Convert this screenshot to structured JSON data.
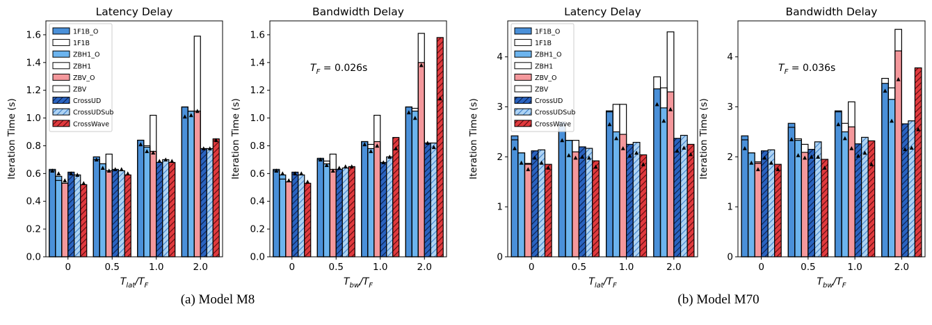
{
  "captions": [
    "(a) Model M8",
    "(b) Model M70"
  ],
  "legend": {
    "entries": [
      {
        "label": "1F1B_O",
        "fill": "#4a90d9",
        "hatch": false
      },
      {
        "label": "1F1B",
        "fill": "none",
        "hatch": false
      },
      {
        "label": "ZBH1_O",
        "fill": "#6cb4ee",
        "hatch": false
      },
      {
        "label": "ZBH1",
        "fill": "none",
        "hatch": false
      },
      {
        "label": "ZBV_O",
        "fill": "#f4989c",
        "hatch": false
      },
      {
        "label": "ZBV",
        "fill": "none",
        "hatch": false
      },
      {
        "label": "CrossUD",
        "fill": "#2a63c0",
        "hatch": true
      },
      {
        "label": "CrossUDSub",
        "fill": "#aed3f3",
        "hatch": true
      },
      {
        "label": "CrossWave",
        "fill": "#e03a3e",
        "hatch": true
      }
    ]
  },
  "chart_data": [
    {
      "type": "bar",
      "model": "M8",
      "title": "Latency Delay",
      "xlabel_main": "T",
      "xlabel_main_sub": "lat",
      "xlabel_den": "T",
      "xlabel_den_sub": "F",
      "ylabel": "Iteration Time (s)",
      "categories": [
        "0",
        "0.5",
        "1.0",
        "2.0"
      ],
      "ylim": [
        0,
        1.7
      ],
      "yticks": [
        "0.0",
        "0.2",
        "0.4",
        "0.6",
        "0.8",
        "1.0",
        "1.2",
        "1.4",
        "1.6"
      ],
      "ytick_values": [
        0,
        0.2,
        0.4,
        0.6,
        0.8,
        1.0,
        1.2,
        1.4,
        1.6
      ],
      "annotation": "",
      "series": [
        {
          "values": [
            0.63,
            0.72,
            0.84,
            1.08
          ],
          "markers": [
            0.62,
            0.7,
            0.81,
            1.01
          ]
        },
        {
          "values": [
            0.62,
            0.7,
            0.84,
            1.08
          ],
          "markers": []
        },
        {
          "values": [
            0.58,
            0.67,
            0.79,
            1.05
          ],
          "markers": [
            0.6,
            0.64,
            0.76,
            1.02
          ]
        },
        {
          "values": [
            0.55,
            0.67,
            0.8,
            1.05
          ],
          "markers": []
        },
        {
          "values": [
            0.53,
            0.62,
            0.76,
            1.05
          ],
          "markers": [
            0.55,
            0.62,
            0.75,
            1.05
          ]
        },
        {
          "values": [
            0.53,
            0.74,
            1.02,
            1.59
          ],
          "markers": []
        },
        {
          "values": [
            0.61,
            0.63,
            0.68,
            0.78
          ],
          "markers": [
            0.6,
            0.63,
            0.69,
            0.78
          ]
        },
        {
          "values": [
            0.59,
            0.62,
            0.7,
            0.78
          ],
          "markers": [
            0.59,
            0.63,
            0.7,
            0.78
          ]
        },
        {
          "values": [
            0.52,
            0.59,
            0.68,
            0.85
          ],
          "markers": [
            0.53,
            0.6,
            0.69,
            0.84
          ]
        }
      ]
    },
    {
      "type": "bar",
      "model": "M8",
      "title": "Bandwidth Delay",
      "xlabel_main": "T",
      "xlabel_main_sub": "bw",
      "xlabel_den": "T",
      "xlabel_den_sub": "F",
      "ylabel": "Iteration Time (s)",
      "categories": [
        "0",
        "0.5",
        "1.0",
        "2.0"
      ],
      "ylim": [
        0,
        1.7
      ],
      "yticks": [
        "0.0",
        "0.2",
        "0.4",
        "0.6",
        "0.8",
        "1.0",
        "1.2",
        "1.4",
        "1.6"
      ],
      "ytick_values": [
        0,
        0.2,
        0.4,
        0.6,
        0.8,
        1.0,
        1.2,
        1.4,
        1.6
      ],
      "annotation": "= 0.026s",
      "annotation_sym": "T",
      "annotation_sub": "F",
      "series": [
        {
          "values": [
            0.63,
            0.71,
            0.83,
            1.08
          ],
          "markers": [
            0.62,
            0.7,
            0.81,
            1.04
          ]
        },
        {
          "values": [
            0.62,
            0.7,
            0.83,
            1.08
          ],
          "markers": []
        },
        {
          "values": [
            0.59,
            0.67,
            0.78,
            1.05
          ],
          "markers": [
            0.6,
            0.66,
            0.76,
            1.0
          ]
        },
        {
          "values": [
            0.56,
            0.69,
            0.81,
            1.07
          ],
          "markers": []
        },
        {
          "values": [
            0.54,
            0.63,
            0.83,
            1.4
          ],
          "markers": [
            0.55,
            0.62,
            0.8,
            1.38
          ]
        },
        {
          "values": [
            0.54,
            0.74,
            1.02,
            1.61
          ],
          "markers": []
        },
        {
          "values": [
            0.61,
            0.63,
            0.68,
            0.82
          ],
          "markers": [
            0.6,
            0.64,
            0.68,
            0.82
          ]
        },
        {
          "values": [
            0.59,
            0.64,
            0.72,
            0.82
          ],
          "markers": [
            0.6,
            0.65,
            0.72,
            0.79
          ]
        },
        {
          "values": [
            0.53,
            0.65,
            0.86,
            1.58
          ],
          "markers": [
            0.54,
            0.65,
            0.78,
            1.14
          ]
        }
      ]
    },
    {
      "type": "bar",
      "model": "M70",
      "title": "Latency Delay",
      "xlabel_main": "T",
      "xlabel_main_sub": "lat",
      "xlabel_den": "T",
      "xlabel_den_sub": "F",
      "ylabel": "Iteration Time (s)",
      "categories": [
        "0",
        "0.5",
        "1.0",
        "2.0"
      ],
      "ylim": [
        0,
        4.72
      ],
      "yticks": [
        "0",
        "1",
        "2",
        "3",
        "4"
      ],
      "ytick_values": [
        0,
        1,
        2,
        3,
        4
      ],
      "annotation": "",
      "series": [
        {
          "values": [
            2.42,
            2.7,
            2.92,
            3.36
          ],
          "markers": [
            2.17,
            2.33,
            2.65,
            3.05
          ]
        },
        {
          "values": [
            2.34,
            2.62,
            2.9,
            3.6
          ],
          "markers": []
        },
        {
          "values": [
            2.08,
            2.33,
            2.5,
            2.98
          ],
          "markers": [
            1.88,
            2.03,
            2.37,
            2.72
          ]
        },
        {
          "values": [
            2.08,
            2.33,
            3.05,
            3.38
          ],
          "markers": []
        },
        {
          "values": [
            1.87,
            2.1,
            2.45,
            3.3
          ],
          "markers": [
            1.75,
            1.98,
            2.17,
            2.95
          ]
        },
        {
          "values": [
            1.85,
            2.33,
            3.05,
            4.5
          ],
          "markers": []
        },
        {
          "values": [
            2.12,
            2.2,
            2.25,
            2.37
          ],
          "markers": [
            1.98,
            2.0,
            2.02,
            2.12
          ]
        },
        {
          "values": [
            2.14,
            2.17,
            2.29,
            2.43
          ],
          "markers": [
            1.88,
            1.98,
            2.08,
            2.18
          ]
        },
        {
          "values": [
            1.85,
            1.92,
            2.04,
            2.25
          ],
          "markers": [
            1.78,
            1.8,
            1.85,
            2.05
          ]
        }
      ]
    },
    {
      "type": "bar",
      "model": "M70",
      "title": "Bandwidth Delay",
      "xlabel_main": "T",
      "xlabel_main_sub": "bw",
      "xlabel_den": "T",
      "xlabel_den_sub": "F",
      "ylabel": "Iteration Time (s)",
      "categories": [
        "0",
        "0.5",
        "1.0",
        "2.0"
      ],
      "ylim": [
        0,
        4.72
      ],
      "yticks": [
        "0",
        "1",
        "2",
        "3",
        "4"
      ],
      "ytick_values": [
        0,
        1,
        2,
        3,
        4
      ],
      "annotation": "= 0.036s",
      "annotation_sym": "T",
      "annotation_sub": "F",
      "series": [
        {
          "values": [
            2.42,
            2.67,
            2.92,
            3.47
          ],
          "markers": [
            2.17,
            2.35,
            2.65,
            3.32
          ]
        },
        {
          "values": [
            2.34,
            2.59,
            2.9,
            3.57
          ],
          "markers": []
        },
        {
          "values": [
            2.08,
            2.33,
            2.5,
            3.15
          ],
          "markers": [
            1.88,
            2.03,
            2.37,
            2.72
          ]
        },
        {
          "values": [
            2.08,
            2.36,
            2.67,
            3.38
          ],
          "markers": []
        },
        {
          "values": [
            1.9,
            2.09,
            2.6,
            4.12
          ],
          "markers": [
            1.75,
            1.98,
            2.17,
            3.55
          ]
        },
        {
          "values": [
            1.87,
            2.25,
            3.1,
            4.55
          ],
          "markers": []
        },
        {
          "values": [
            2.12,
            2.15,
            2.26,
            2.66
          ],
          "markers": [
            1.98,
            2.0,
            2.02,
            2.15
          ]
        },
        {
          "values": [
            2.14,
            2.3,
            2.39,
            2.72
          ],
          "markers": [
            1.88,
            2.0,
            2.08,
            2.18
          ]
        },
        {
          "values": [
            1.85,
            1.95,
            2.32,
            3.78
          ],
          "markers": [
            1.75,
            1.78,
            1.85,
            2.55
          ]
        }
      ]
    }
  ]
}
